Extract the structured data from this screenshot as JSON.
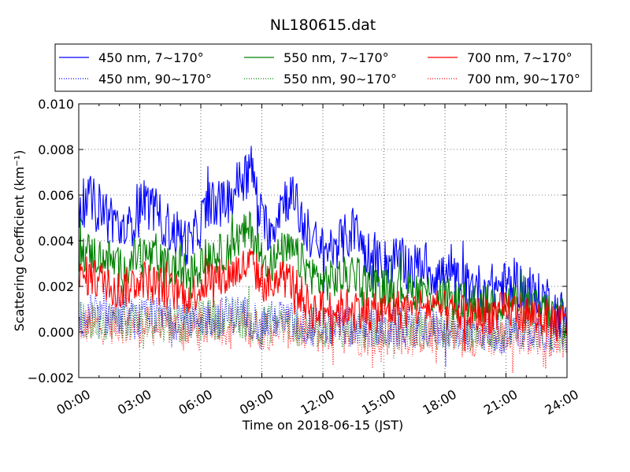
{
  "chart_data": {
    "type": "line",
    "title": "NL180615.dat",
    "xlabel": "Time on 2018-06-15 (JST)",
    "ylabel": "Scattering Coefficient (km⁻¹)",
    "xlim": [
      0,
      24
    ],
    "ylim": [
      -0.002,
      0.01
    ],
    "x_ticks": [
      0,
      3,
      6,
      9,
      12,
      15,
      18,
      21,
      24
    ],
    "x_tick_labels": [
      "00:00",
      "03:00",
      "06:00",
      "09:00",
      "12:00",
      "15:00",
      "18:00",
      "21:00",
      "24:00"
    ],
    "y_ticks": [
      -0.002,
      0.0,
      0.002,
      0.004,
      0.006,
      0.008,
      0.01
    ],
    "y_tick_labels": [
      "−0.002",
      "0.000",
      "0.002",
      "0.004",
      "0.006",
      "0.008",
      "0.010"
    ],
    "grid": true,
    "legend_position": "top (above plot)",
    "series": [
      {
        "name": "450 nm, 7∼170°",
        "color": "#0000ff",
        "style": "solid",
        "x": [
          0,
          0.5,
          1,
          1.5,
          2,
          2.5,
          3,
          3.5,
          4,
          4.5,
          5,
          5.5,
          6,
          6.5,
          7,
          7.5,
          8,
          8.5,
          9,
          9.5,
          10,
          10.5,
          11,
          11.5,
          12,
          12.5,
          13,
          13.5,
          14,
          14.5,
          15,
          15.5,
          16,
          16.5,
          17,
          17.5,
          18,
          18.5,
          19,
          19.5,
          20,
          20.5,
          21,
          21.5,
          22,
          22.5,
          23,
          23.5,
          24
        ],
        "y": [
          0.0055,
          0.0058,
          0.0055,
          0.0052,
          0.0045,
          0.0045,
          0.0058,
          0.0055,
          0.005,
          0.0045,
          0.0042,
          0.0038,
          0.0048,
          0.0058,
          0.0055,
          0.006,
          0.0068,
          0.0072,
          0.0048,
          0.0045,
          0.0058,
          0.006,
          0.0048,
          0.004,
          0.0035,
          0.0038,
          0.004,
          0.0045,
          0.0038,
          0.003,
          0.003,
          0.0032,
          0.003,
          0.0028,
          0.003,
          0.0025,
          0.0025,
          0.0022,
          0.002,
          0.002,
          0.0018,
          0.002,
          0.002,
          0.0022,
          0.0018,
          0.0015,
          0.0015,
          0.0008,
          0.0008
        ]
      },
      {
        "name": "450 nm, 90∼170°",
        "color": "#0000ff",
        "style": "dotted",
        "x": [
          0,
          1,
          2,
          3,
          4,
          5,
          6,
          7,
          8,
          9,
          10,
          11,
          12,
          13,
          14,
          15,
          16,
          17,
          18,
          19,
          20,
          21,
          22,
          23,
          24
        ],
        "y": [
          0.0005,
          0.0006,
          0.0008,
          0.0005,
          0.0007,
          0.0005,
          0.0006,
          0.0007,
          0.0008,
          0.0004,
          0.0006,
          0.0003,
          0.0002,
          0.0003,
          0.0002,
          0.0001,
          0.0002,
          0.0002,
          0.0001,
          0.0,
          0.0,
          -0.0001,
          0.0001,
          0.0,
          -0.0001
        ]
      },
      {
        "name": "550 nm, 7∼170°",
        "color": "#008000",
        "style": "solid",
        "x": [
          0,
          0.5,
          1,
          1.5,
          2,
          2.5,
          3,
          3.5,
          4,
          4.5,
          5,
          5.5,
          6,
          6.5,
          7,
          7.5,
          8,
          8.5,
          9,
          9.5,
          10,
          10.5,
          11,
          11.5,
          12,
          12.5,
          13,
          13.5,
          14,
          14.5,
          15,
          15.5,
          16,
          16.5,
          17,
          17.5,
          18,
          18.5,
          19,
          19.5,
          20,
          20.5,
          21,
          21.5,
          22,
          22.5,
          23,
          23.5,
          24
        ],
        "y": [
          0.0035,
          0.0035,
          0.0033,
          0.0032,
          0.0028,
          0.003,
          0.0035,
          0.0033,
          0.003,
          0.0028,
          0.0027,
          0.0025,
          0.003,
          0.0035,
          0.0034,
          0.0038,
          0.0042,
          0.0045,
          0.0032,
          0.003,
          0.0035,
          0.0035,
          0.003,
          0.0025,
          0.0022,
          0.0023,
          0.0024,
          0.0026,
          0.0023,
          0.002,
          0.0019,
          0.002,
          0.0019,
          0.0018,
          0.0018,
          0.0016,
          0.0015,
          0.0014,
          0.0013,
          0.0013,
          0.0012,
          0.0013,
          0.0013,
          0.0014,
          0.0012,
          0.001,
          0.001,
          0.0006,
          0.0006
        ]
      },
      {
        "name": "550 nm, 90∼170°",
        "color": "#008000",
        "style": "dotted",
        "x": [
          0,
          1,
          2,
          3,
          4,
          5,
          6,
          7,
          8,
          9,
          10,
          11,
          12,
          13,
          14,
          15,
          16,
          17,
          18,
          19,
          20,
          21,
          22,
          23,
          24
        ],
        "y": [
          0.0004,
          0.0005,
          0.0006,
          0.0004,
          0.0005,
          0.0004,
          0.0005,
          0.0006,
          0.0006,
          0.0003,
          0.0005,
          0.0002,
          0.0002,
          0.0002,
          0.0001,
          0.0001,
          0.0001,
          0.0001,
          0.0,
          0.0,
          0.0,
          -0.0001,
          0.0001,
          0.0,
          -0.0001
        ]
      },
      {
        "name": "700 nm, 7∼170°",
        "color": "#ff0000",
        "style": "solid",
        "x": [
          0,
          0.5,
          1,
          1.5,
          2,
          2.5,
          3,
          3.5,
          4,
          4.5,
          5,
          5.5,
          6,
          6.5,
          7,
          7.5,
          8,
          8.5,
          9,
          9.5,
          10,
          10.5,
          11,
          11.5,
          12,
          12.5,
          13,
          13.5,
          14,
          14.5,
          15,
          15.5,
          16,
          16.5,
          17,
          17.5,
          18,
          18.5,
          19,
          19.5,
          20,
          20.5,
          21,
          21.5,
          22,
          22.5,
          23,
          23.5,
          24
        ],
        "y": [
          0.0022,
          0.0025,
          0.0023,
          0.0022,
          0.0018,
          0.002,
          0.0024,
          0.0022,
          0.002,
          0.0018,
          0.0017,
          0.0016,
          0.002,
          0.0024,
          0.0023,
          0.0026,
          0.0028,
          0.003,
          0.0022,
          0.002,
          0.0024,
          0.0022,
          0.0015,
          0.001,
          0.001,
          0.001,
          0.001,
          0.0012,
          0.001,
          0.0008,
          0.0009,
          0.001,
          0.001,
          0.001,
          0.0012,
          0.001,
          0.0009,
          0.0008,
          0.0008,
          0.0007,
          0.0008,
          0.0008,
          0.0009,
          0.001,
          0.0008,
          0.0007,
          0.0006,
          0.0004,
          0.0004
        ]
      },
      {
        "name": "700 nm, 90∼170°",
        "color": "#ff0000",
        "style": "dotted",
        "x": [
          0,
          1,
          2,
          3,
          4,
          5,
          6,
          7,
          8,
          9,
          10,
          11,
          12,
          13,
          14,
          15,
          16,
          17,
          18,
          19,
          20,
          21,
          22,
          23,
          24
        ],
        "y": [
          0.0003,
          0.0003,
          0.0004,
          0.0002,
          0.0003,
          0.0002,
          0.0002,
          0.0003,
          0.0003,
          0.0001,
          0.0002,
          0.0,
          -0.0001,
          0.0,
          -0.0002,
          -0.0002,
          -0.0001,
          -0.0001,
          -0.0002,
          -0.0002,
          -0.0002,
          -0.0003,
          -0.0001,
          -0.0002,
          -0.0003
        ]
      }
    ]
  }
}
